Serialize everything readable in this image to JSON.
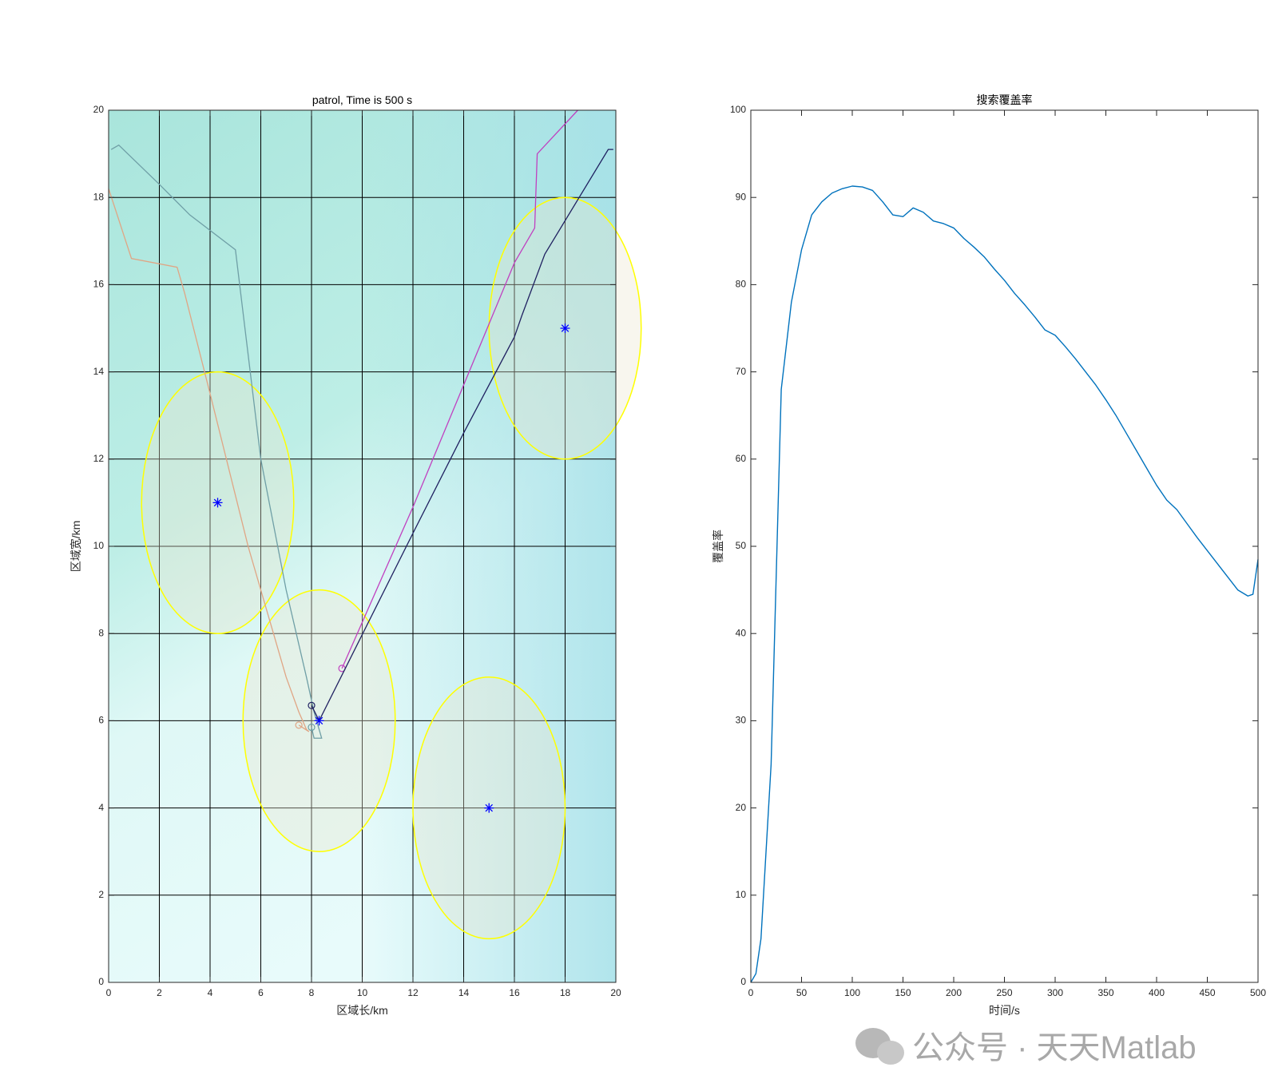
{
  "chart_data": [
    {
      "type": "trajectory",
      "title": "patrol, Time is 500 s",
      "xlabel": "区域长/km",
      "ylabel": "区域宽/km",
      "xlim": [
        0,
        20
      ],
      "ylim": [
        0,
        20
      ],
      "xticks": [
        0,
        2,
        4,
        6,
        8,
        10,
        12,
        14,
        16,
        18,
        20
      ],
      "yticks": [
        0,
        2,
        4,
        6,
        8,
        10,
        12,
        14,
        16,
        18,
        20
      ],
      "grid": true,
      "series": [
        {
          "color": "#6f9fa6",
          "x": [
            0.1,
            0.4,
            2,
            3.2,
            5,
            6,
            7,
            7.8,
            8.1,
            8.3,
            8.4,
            8.1,
            8.0
          ],
          "y": [
            19.1,
            19.2,
            18.3,
            17.6,
            16.8,
            12,
            9,
            7,
            6.2,
            5.8,
            5.6,
            5.6,
            5.85
          ]
        },
        {
          "color": "#e0a584",
          "x": [
            0,
            0.9,
            2.7,
            3,
            4,
            5.5,
            7,
            7.5,
            7.8,
            7.9,
            7.5
          ],
          "y": [
            18.2,
            16.6,
            16.4,
            15.8,
            13.5,
            10,
            7,
            6.2,
            5.8,
            5.75,
            5.9
          ]
        },
        {
          "color": "#c040c0",
          "x": [
            18.5,
            16.9,
            16.8,
            16,
            14,
            12,
            9.2
          ],
          "y": [
            20,
            19,
            17.3,
            16.5,
            13.7,
            10.9,
            7.2
          ]
        },
        {
          "color": "#1f2060",
          "x": [
            19.9,
            19.7,
            17.2,
            16.3,
            16,
            14,
            12,
            8.3,
            8.0
          ],
          "y": [
            19.1,
            19.1,
            16.7,
            15.3,
            14.8,
            12.6,
            10.3,
            6,
            6.35
          ]
        }
      ],
      "targets": {
        "color": "#0000ff",
        "x": [
          4.3,
          18,
          15,
          8.3
        ],
        "y": [
          11,
          15,
          4,
          6
        ]
      },
      "target_radius": 3,
      "target_color": "#ffff00"
    },
    {
      "type": "line",
      "title": "搜索覆盖率",
      "xlabel": "时间/s",
      "ylabel": "覆盖率",
      "color": "#0072bd",
      "xlim": [
        0,
        500
      ],
      "ylim": [
        0,
        100
      ],
      "xticks": [
        0,
        50,
        100,
        150,
        200,
        250,
        300,
        350,
        400,
        450,
        500
      ],
      "yticks": [
        0,
        10,
        20,
        30,
        40,
        50,
        60,
        70,
        80,
        90,
        100
      ],
      "grid": false,
      "x": [
        0,
        5,
        10,
        20,
        30,
        40,
        50,
        60,
        70,
        80,
        90,
        100,
        110,
        120,
        130,
        140,
        150,
        160,
        170,
        180,
        190,
        200,
        210,
        220,
        230,
        240,
        250,
        260,
        270,
        280,
        290,
        300,
        310,
        320,
        330,
        340,
        350,
        360,
        370,
        380,
        390,
        400,
        410,
        420,
        430,
        440,
        450,
        460,
        470,
        480,
        490,
        495,
        500
      ],
      "values": [
        0,
        1,
        5,
        25,
        68,
        78,
        84,
        88,
        89.5,
        90.5,
        91,
        91.3,
        91.2,
        90.8,
        89.5,
        88,
        87.8,
        88.8,
        88.3,
        87.3,
        87,
        86.5,
        85.3,
        84.3,
        83.2,
        81.8,
        80.5,
        79,
        77.7,
        76.3,
        74.8,
        74.2,
        72.9,
        71.5,
        70,
        68.5,
        66.8,
        65,
        63,
        61,
        59,
        57,
        55.3,
        54.2,
        52.6,
        51,
        49.5,
        48,
        46.5,
        45,
        44.3,
        44.5,
        48.5
      ]
    }
  ],
  "watermark": "公众号 · 天天Matlab"
}
